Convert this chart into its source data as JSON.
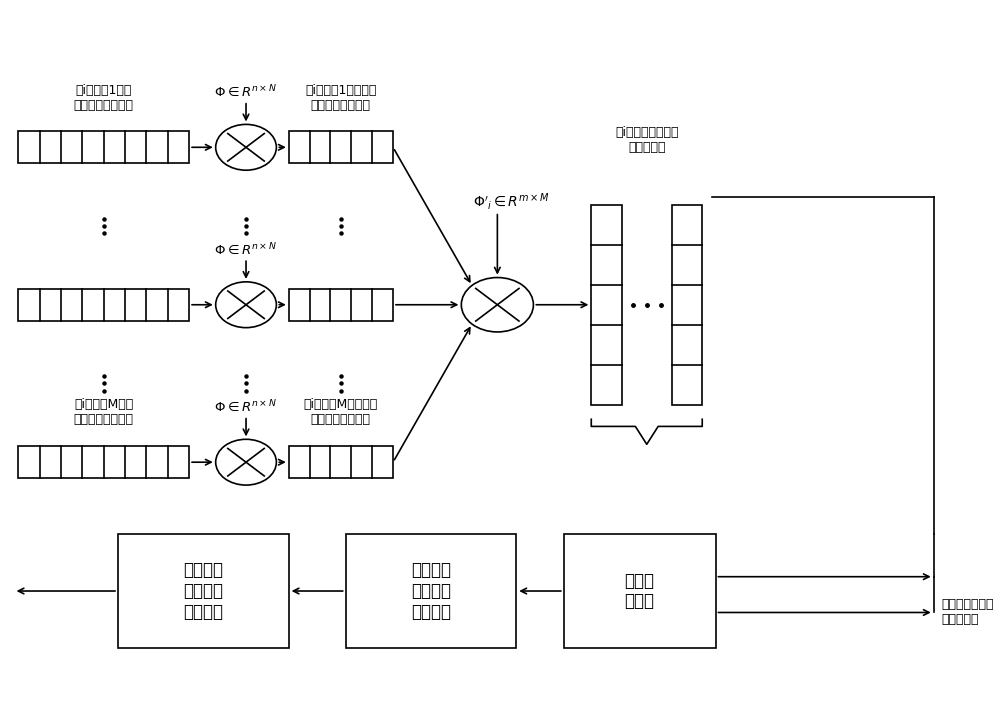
{
  "bg_color": "#ffffff",
  "fig_width": 10.0,
  "fig_height": 7.24,
  "label_row1_left": "第i个簇第1个传\n感器节点原始数据",
  "label_row1_right": "第i个簇第1个传感器\n节点压缩采样数据",
  "label_row3_left": "第i个簇第M个传\n感器节点原始数据",
  "label_row3_right": "第i个簇第M个传感器\n节点压缩采样数据",
  "cluster_head_label": "第i个簇头节点的本\n簇压缩数据",
  "box1_label": "压缩感知\n重建（时\n间维度）",
  "box2_label": "压缩感知\n重建（空\n间维度）",
  "box3_label": "线性网\n络编码",
  "arrow_label": "来自于其他簇头\n节点的数据"
}
